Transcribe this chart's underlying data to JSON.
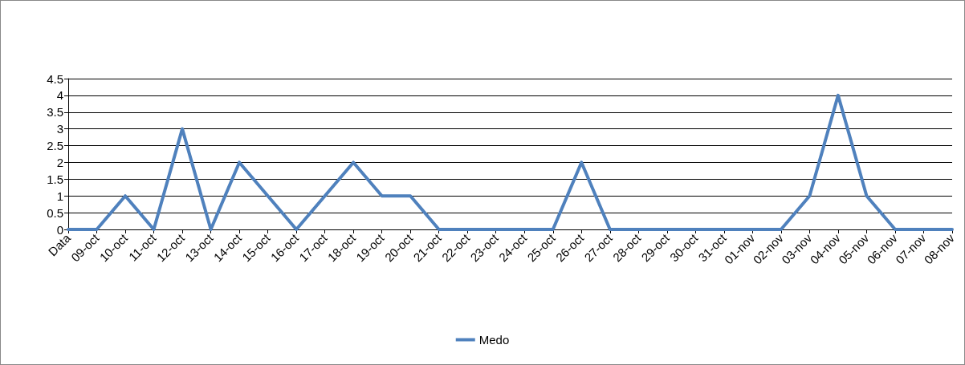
{
  "chart_data": {
    "type": "line",
    "categories": [
      "Data",
      "09-oct",
      "10-oct",
      "11-oct",
      "12-oct",
      "13-oct",
      "14-oct",
      "15-oct",
      "16-oct",
      "17-oct",
      "18-oct",
      "19-oct",
      "20-oct",
      "21-oct",
      "22-oct",
      "23-oct",
      "24-oct",
      "25-oct",
      "26-oct",
      "27-oct",
      "28-oct",
      "29-oct",
      "30-oct",
      "31-oct",
      "01-nov",
      "02-nov",
      "03-nov",
      "04-nov",
      "05-nov",
      "06-nov",
      "07-nov",
      "08-nov"
    ],
    "series": [
      {
        "name": "Medo",
        "color": "#4f81bd",
        "values": [
          0,
          0,
          1,
          0,
          3,
          0,
          2,
          1,
          0,
          1,
          2,
          1,
          1,
          0,
          0,
          0,
          0,
          0,
          2,
          0,
          0,
          0,
          0,
          0,
          0,
          0,
          1,
          4,
          1,
          0,
          0,
          0
        ]
      }
    ],
    "ylim": [
      0,
      4.5
    ],
    "yticks": [
      0,
      0.5,
      1,
      1.5,
      2,
      2.5,
      3,
      3.5,
      4,
      4.5
    ],
    "grid": "y",
    "legend": "bottom",
    "marker": "none",
    "line_style": "solid"
  }
}
